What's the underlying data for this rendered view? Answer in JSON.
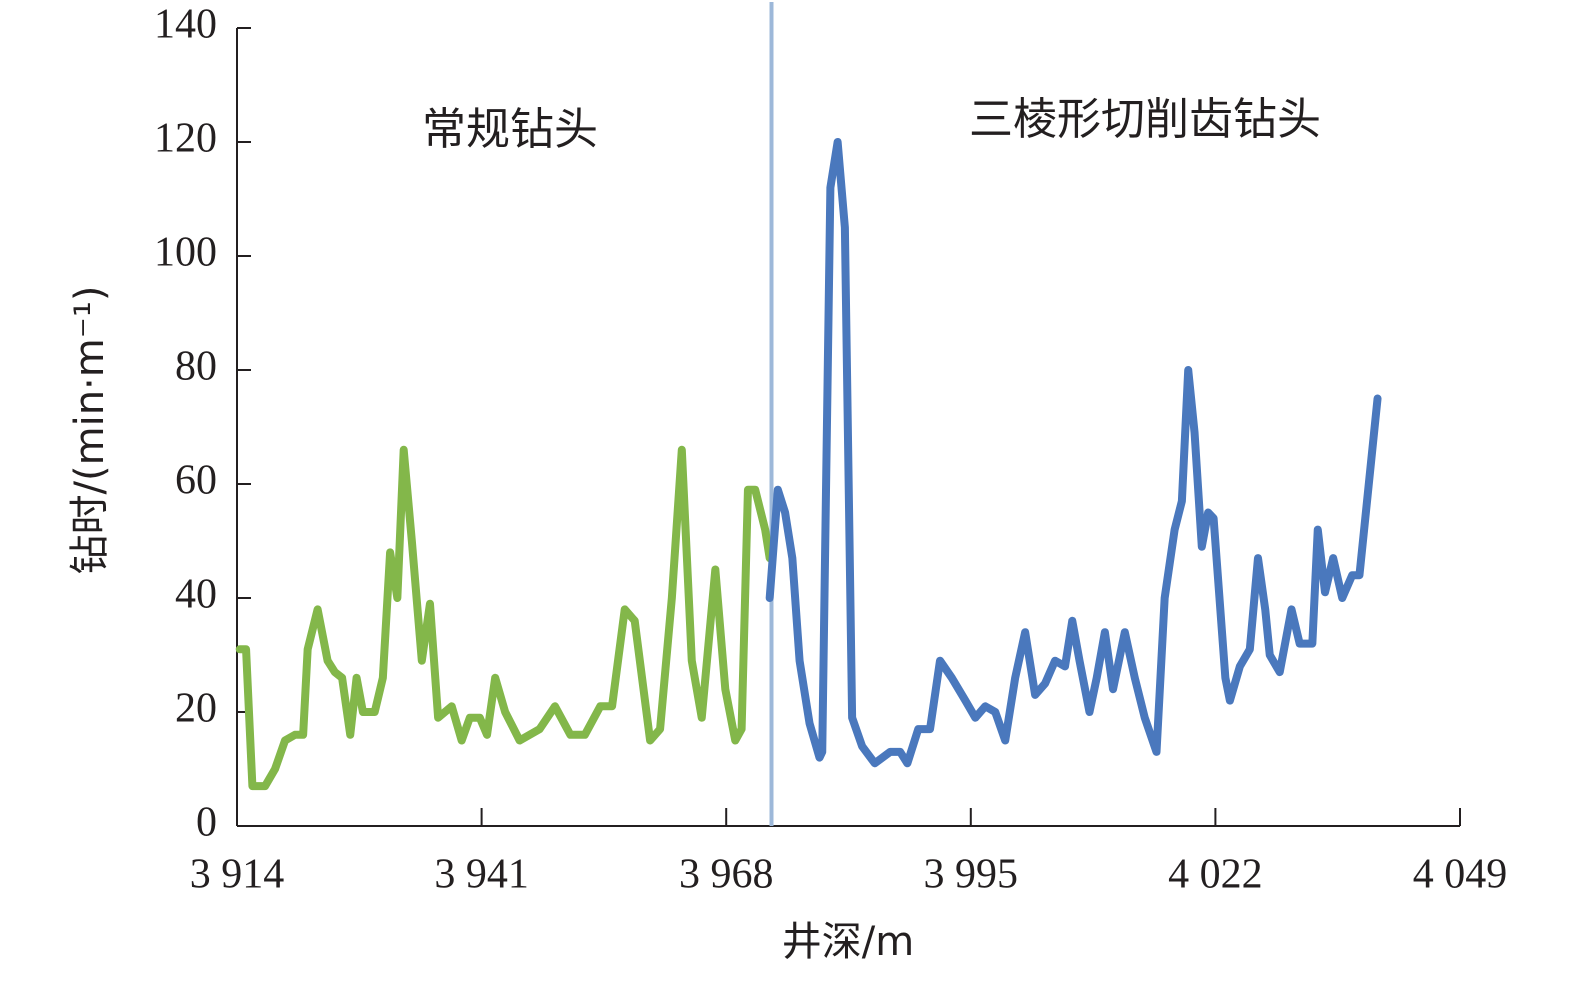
{
  "chart_data": {
    "type": "line",
    "x_label": "井深/m",
    "y_label": "钻时/(min·m⁻¹)",
    "annotations": [
      "常规钻头",
      "三棱形切削齿钻头"
    ],
    "xlim": [
      3914,
      4049
    ],
    "ylim": [
      0,
      140
    ],
    "xticks": [
      {
        "value": 3914,
        "label": "3 914"
      },
      {
        "value": 3941,
        "label": "3 941"
      },
      {
        "value": 3968,
        "label": "3 968"
      },
      {
        "value": 3995,
        "label": "3 995"
      },
      {
        "value": 4022,
        "label": "4 022"
      },
      {
        "value": 4049,
        "label": "4 049"
      }
    ],
    "yticks": [
      0,
      20,
      40,
      60,
      80,
      100,
      120,
      140
    ],
    "divider_x": 3973,
    "divider_color": "#9db8d9",
    "series": [
      {
        "color": "#83b74a",
        "x": [
          3914.3,
          3915,
          3915.7,
          3917.1,
          3918.2,
          3919.3,
          3920.4,
          3921.3,
          3921.8,
          3922.9,
          3924.0,
          3924.8,
          3925.6,
          3926.5,
          3927.2,
          3927.9,
          3929.2,
          3930.1,
          3930.9,
          3931.7,
          3932.4,
          3933.3,
          3934.4,
          3935.3,
          3936.2,
          3937.7,
          3938.8,
          3939.7,
          3940.8,
          3941.6,
          3942.5,
          3943.6,
          3945.2,
          3947.4,
          3949.1,
          3950.8,
          3952.4,
          3954.1,
          3955.4,
          3956.8,
          3957.9,
          3959.6,
          3960.7,
          3962.0,
          3963.1,
          3964.2,
          3965.3,
          3966.8,
          3967.9,
          3969.0,
          3969.7,
          3970.4,
          3971.2,
          3972.3,
          3972.8
        ],
        "values": [
          31,
          31,
          7,
          7,
          10,
          15,
          16,
          16,
          31,
          38,
          29,
          27,
          26,
          16,
          26,
          20,
          20,
          26,
          48,
          40,
          66,
          50,
          29,
          39,
          19,
          21,
          15,
          19,
          19,
          16,
          26,
          20,
          15,
          17,
          21,
          16,
          16,
          21,
          21,
          38,
          36,
          15,
          17,
          40,
          66,
          29,
          19,
          45,
          24,
          15,
          17,
          59,
          59,
          52,
          47
        ]
      },
      {
        "color": "#4a78bd",
        "x": [
          3972.8,
          3973.7,
          3974.5,
          3975.3,
          3976.1,
          3977.2,
          3978.3,
          3978.6,
          3979.5,
          3980.3,
          3981.1,
          3981.9,
          3983.0,
          3984.4,
          3986.1,
          3987.2,
          3988.0,
          3989.2,
          3990.5,
          3991.6,
          3992.9,
          3994.4,
          3995.5,
          3996.6,
          3997.7,
          3998.8,
          3999.9,
          4001.0,
          4002.1,
          4003.2,
          4004.3,
          4005.4,
          4006.2,
          4007.0,
          4008.1,
          4008.9,
          4009.8,
          4010.7,
          4012.0,
          4013.1,
          4014.2,
          4015.5,
          4016.4,
          4017.5,
          4018.3,
          4019.0,
          4019.7,
          4020.5,
          4021.2,
          4021.8,
          4023.1,
          4023.6,
          4024.7,
          4025.8,
          4026.7,
          4027.5,
          4028.0,
          4029.1,
          4030.4,
          4031.3,
          4032.7,
          4033.3,
          4034.1,
          4035.0,
          4036.0,
          4037.1,
          4037.9,
          4039.9
        ],
        "values": [
          40,
          59,
          55,
          47,
          29,
          18,
          12,
          13,
          112,
          120,
          105,
          19,
          14,
          11,
          13,
          13,
          11,
          17,
          17,
          29,
          26,
          22,
          19,
          21,
          20,
          15,
          26,
          34,
          23,
          25,
          29,
          28,
          36,
          29,
          20,
          26,
          34,
          24,
          34,
          26,
          19,
          13,
          40,
          52,
          57,
          80,
          69,
          49,
          55,
          54,
          26,
          22,
          28,
          31,
          47,
          38,
          30,
          27,
          38,
          32,
          32,
          52,
          41,
          47,
          40,
          44,
          44,
          75
        ]
      }
    ]
  }
}
